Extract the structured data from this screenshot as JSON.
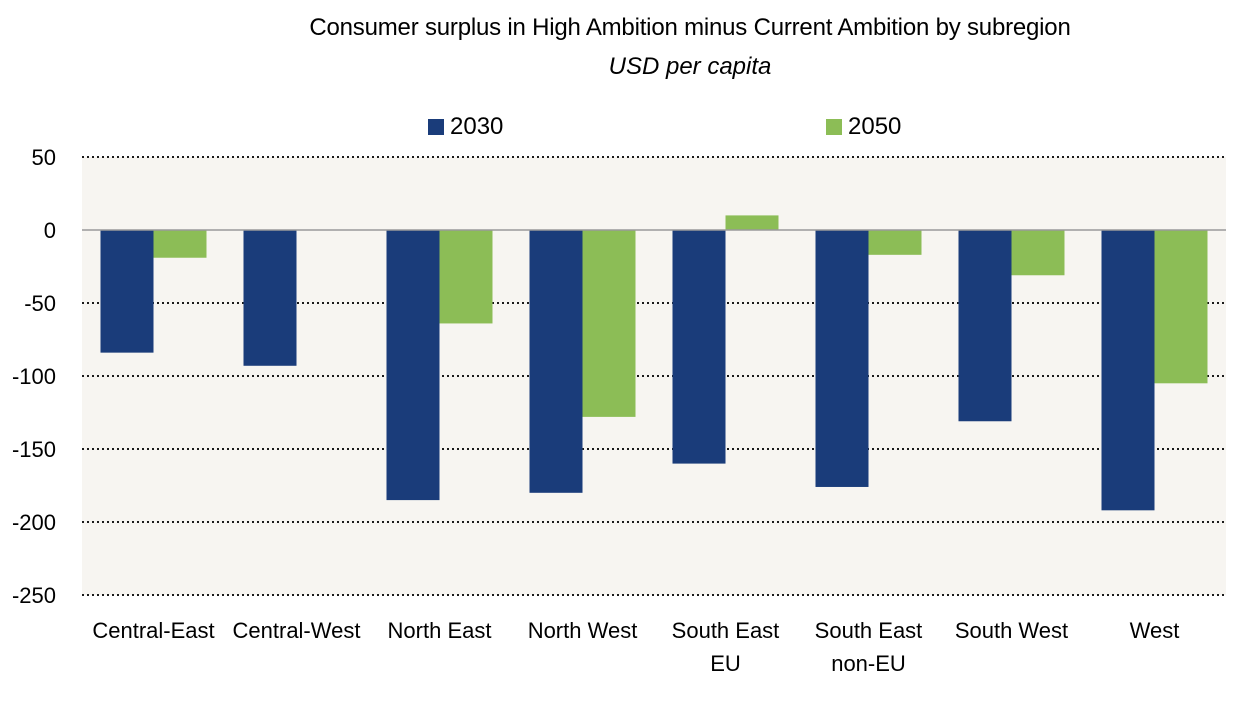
{
  "chart_data": {
    "type": "bar",
    "title": "Consumer surplus in High Ambition minus Current Ambition by subregion",
    "subtitle": "USD per capita",
    "categories": [
      [
        "Central-East"
      ],
      [
        "Central-West"
      ],
      [
        "North East"
      ],
      [
        "North West"
      ],
      [
        "South East",
        "EU"
      ],
      [
        "South East",
        "non-EU"
      ],
      [
        "South West"
      ],
      [
        "West"
      ]
    ],
    "series": [
      {
        "name": "2030",
        "color": "#1a3c7a",
        "values": [
          -84,
          -93,
          -185,
          -180,
          -160,
          -176,
          -131,
          -192
        ]
      },
      {
        "name": "2050",
        "color": "#8cbd56",
        "values": [
          -19,
          0,
          -64,
          -128,
          10,
          -17,
          -31,
          -105
        ]
      }
    ],
    "ylim": [
      -250,
      50
    ],
    "yticks": [
      50,
      0,
      -50,
      -100,
      -150,
      -200,
      -250
    ],
    "ytick_labels": [
      "50",
      "0",
      "-50",
      "-100",
      "-150",
      "-200",
      "-250"
    ],
    "legend_position": "top",
    "grid": "dotted horizontal",
    "plot_background": "#f7f5f1"
  }
}
